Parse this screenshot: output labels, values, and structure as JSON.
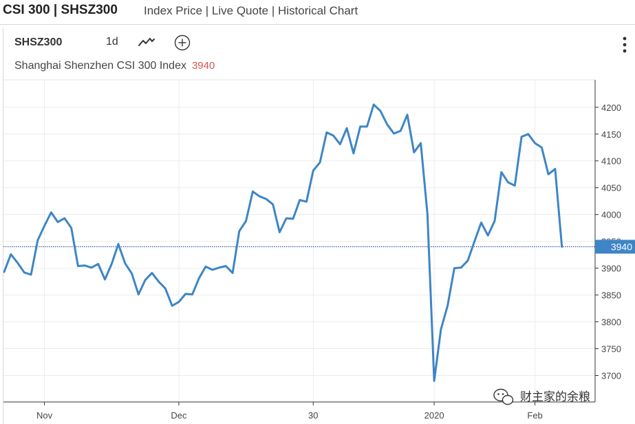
{
  "header": {
    "title": "CSI 300 | SHSZ300",
    "subtitle": "Index Price | Live Quote | Historical Chart"
  },
  "toolbar": {
    "symbol": "SHSZ300",
    "interval": "1d"
  },
  "icons": {
    "chart_type": "line-chart-icon",
    "add": "plus-circle-icon",
    "menu": "vertical-dots-icon"
  },
  "legend": {
    "name": "Shanghai Shenzhen CSI 300 Index",
    "value": "3940"
  },
  "watermark": {
    "text": "财主家的余粮"
  },
  "colors": {
    "line": "#3d85c6",
    "price_line": "#1a2faa",
    "price_label_bg": "#3d85c6",
    "legend_value": "#d9534f"
  },
  "chart_data": {
    "type": "line",
    "title": "Shanghai Shenzhen CSI 300 Index",
    "xlabel": "",
    "ylabel": "",
    "ylim": [
      3670,
      4250
    ],
    "yticks": [
      3700,
      3750,
      3800,
      3850,
      3900,
      3950,
      4000,
      4050,
      4100,
      4150,
      4200
    ],
    "ytick_labels": [
      "3700",
      "3750",
      "3800",
      "3850",
      "3900",
      "3950",
      "4000",
      "4050",
      "4100",
      "4150",
      "4200"
    ],
    "xticks": [
      {
        "label": "Nov",
        "index": 6
      },
      {
        "label": "Dec",
        "index": 26
      },
      {
        "label": "30",
        "index": 46
      },
      {
        "label": "2020",
        "index": 64
      },
      {
        "label": "Feb",
        "index": 79
      }
    ],
    "last_price": 3940,
    "last_price_label": "3940",
    "series": [
      {
        "name": "SHSZ300",
        "values": [
          3893,
          3926,
          3910,
          3892,
          3888,
          3952,
          3979,
          4004,
          3986,
          3993,
          3975,
          3904,
          3905,
          3901,
          3908,
          3879,
          3908,
          3945,
          3909,
          3890,
          3851,
          3878,
          3891,
          3875,
          3862,
          3830,
          3837,
          3852,
          3851,
          3881,
          3903,
          3897,
          3901,
          3904,
          3891,
          3969,
          3988,
          4043,
          4034,
          4029,
          4019,
          3967,
          3993,
          3992,
          4027,
          4024,
          4082,
          4097,
          4153,
          4147,
          4131,
          4161,
          4114,
          4164,
          4164,
          4205,
          4193,
          4168,
          4151,
          4156,
          4186,
          4116,
          4133,
          4001,
          3690,
          3786,
          3830,
          3900,
          3901,
          3914,
          3950,
          3985,
          3961,
          3988,
          4079,
          4060,
          4054,
          4145,
          4150,
          4133,
          4125,
          4075,
          4085,
          3940
        ]
      }
    ]
  }
}
